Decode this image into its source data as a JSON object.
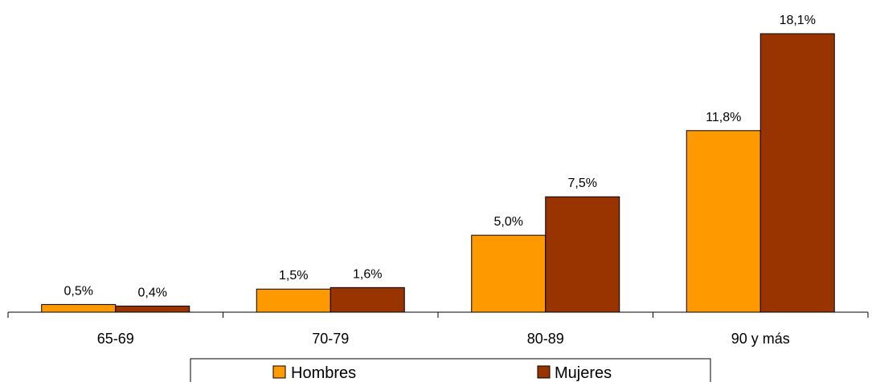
{
  "chart_data": {
    "type": "bar",
    "categories": [
      "65-69",
      "70-79",
      "80-89",
      "90 y más"
    ],
    "series": [
      {
        "name": "Hombres",
        "values": [
          0.5,
          1.5,
          5.0,
          11.8
        ],
        "labels": [
          "0,5%",
          "1,5%",
          "5,0%",
          "11,8%"
        ],
        "color": "#FF9900"
      },
      {
        "name": "Mujeres",
        "values": [
          0.4,
          1.6,
          7.5,
          18.1
        ],
        "labels": [
          "0,4%",
          "1,6%",
          "7,5%",
          "18,1%"
        ],
        "color": "#993300"
      }
    ],
    "ylim": [
      0,
      18.1
    ],
    "grid": false,
    "legend": "bottom"
  }
}
